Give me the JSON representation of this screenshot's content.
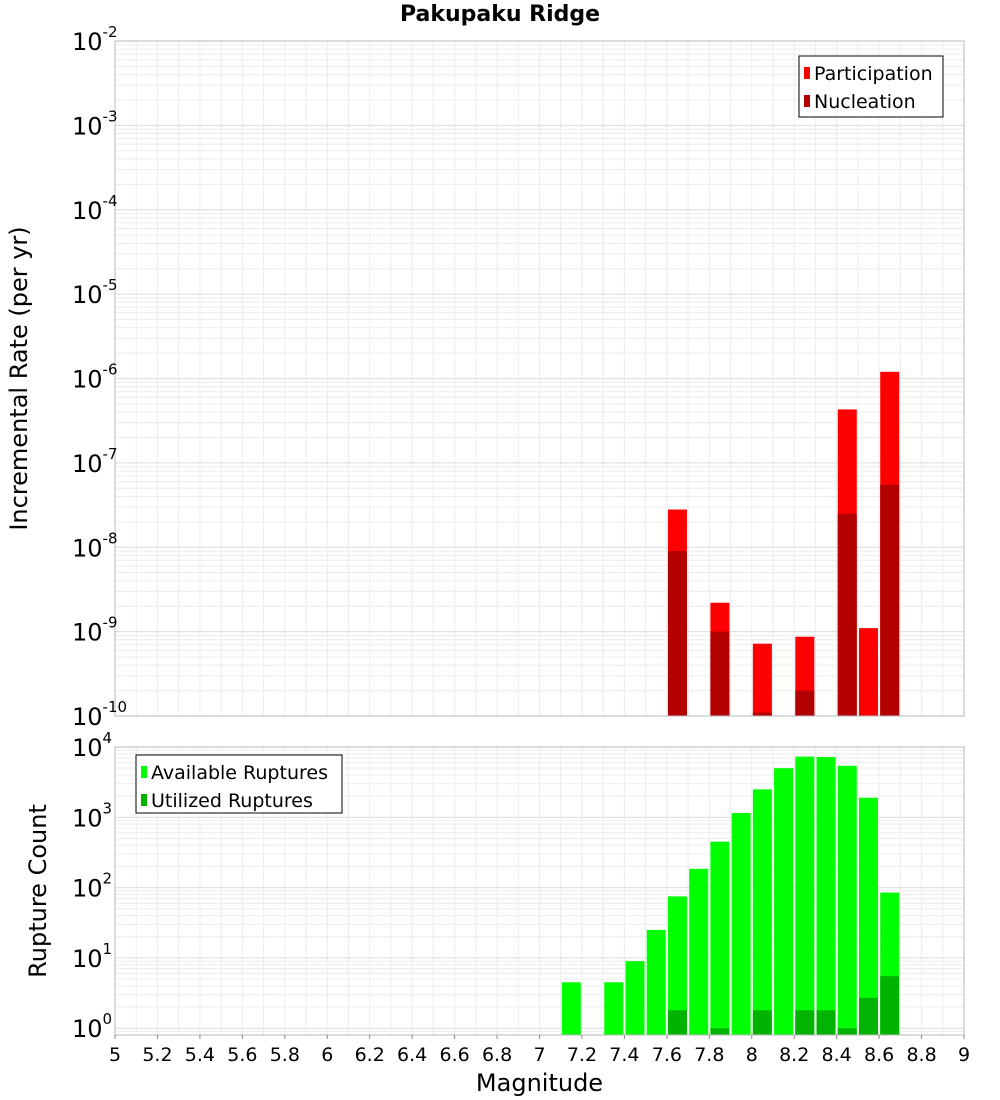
{
  "chart_data": [
    {
      "type": "bar",
      "title": "Pakupaku Ridge",
      "xlabel": "",
      "ylabel": "Incremental Rate (per yr)",
      "yscale": "log",
      "ylim": [
        1e-10,
        0.01
      ],
      "xlim": [
        5,
        9
      ],
      "grid": true,
      "legend_position": "top-right",
      "series": [
        {
          "name": "Participation",
          "color": "#ff0000",
          "x": [
            7.65,
            7.85,
            8.05,
            8.25,
            8.45,
            8.55,
            8.65
          ],
          "values": [
            2.8e-08,
            2.2e-09,
            7.2e-10,
            8.7e-10,
            4.3e-07,
            1.1e-09,
            1.2e-06
          ]
        },
        {
          "name": "Nucleation",
          "color": "#b30000",
          "x": [
            7.65,
            7.85,
            8.05,
            8.25,
            8.45,
            8.65
          ],
          "values": [
            9e-09,
            1e-09,
            1.1e-10,
            2e-10,
            2.5e-08,
            5.5e-08
          ]
        }
      ],
      "ytick_labels": [
        {
          "base": "10",
          "exp": "-10"
        },
        {
          "base": "10",
          "exp": "-9"
        },
        {
          "base": "10",
          "exp": "-8"
        },
        {
          "base": "10",
          "exp": "-7"
        },
        {
          "base": "10",
          "exp": "-6"
        },
        {
          "base": "10",
          "exp": "-5"
        },
        {
          "base": "10",
          "exp": "-4"
        },
        {
          "base": "10",
          "exp": "-3"
        },
        {
          "base": "10",
          "exp": "-2"
        }
      ]
    },
    {
      "type": "bar",
      "title": "",
      "xlabel": "Magnitude",
      "ylabel": "Rupture Count",
      "yscale": "log",
      "ylim": [
        0.8,
        10000
      ],
      "xlim": [
        5,
        9
      ],
      "grid": true,
      "legend_position": "top-left",
      "series": [
        {
          "name": "Available Ruptures",
          "color": "#00ff00",
          "x": [
            7.15,
            7.35,
            7.45,
            7.55,
            7.65,
            7.75,
            7.85,
            7.95,
            8.05,
            8.15,
            8.25,
            8.35,
            8.45,
            8.55,
            8.65
          ],
          "values": [
            4.5,
            4.5,
            9,
            25,
            75,
            185,
            450,
            1150,
            2500,
            5000,
            7300,
            7200,
            5400,
            1900,
            85
          ]
        },
        {
          "name": "Utilized Ruptures",
          "color": "#00b300",
          "x": [
            7.65,
            7.85,
            8.05,
            8.25,
            8.35,
            8.45,
            8.55,
            8.65
          ],
          "values": [
            1.8,
            1,
            1.8,
            1.8,
            1.8,
            1,
            2.7,
            5.5
          ]
        }
      ],
      "xtick_labels": [
        "5",
        "5.2",
        "5.4",
        "5.6",
        "5.8",
        "6",
        "6.2",
        "6.4",
        "6.6",
        "6.8",
        "7",
        "7.2",
        "7.4",
        "7.6",
        "7.8",
        "8",
        "8.2",
        "8.4",
        "8.6",
        "8.8",
        "9"
      ],
      "ytick_labels": [
        {
          "base": "10",
          "exp": "0"
        },
        {
          "base": "10",
          "exp": "1"
        },
        {
          "base": "10",
          "exp": "2"
        },
        {
          "base": "10",
          "exp": "3"
        },
        {
          "base": "10",
          "exp": "4"
        }
      ]
    }
  ]
}
